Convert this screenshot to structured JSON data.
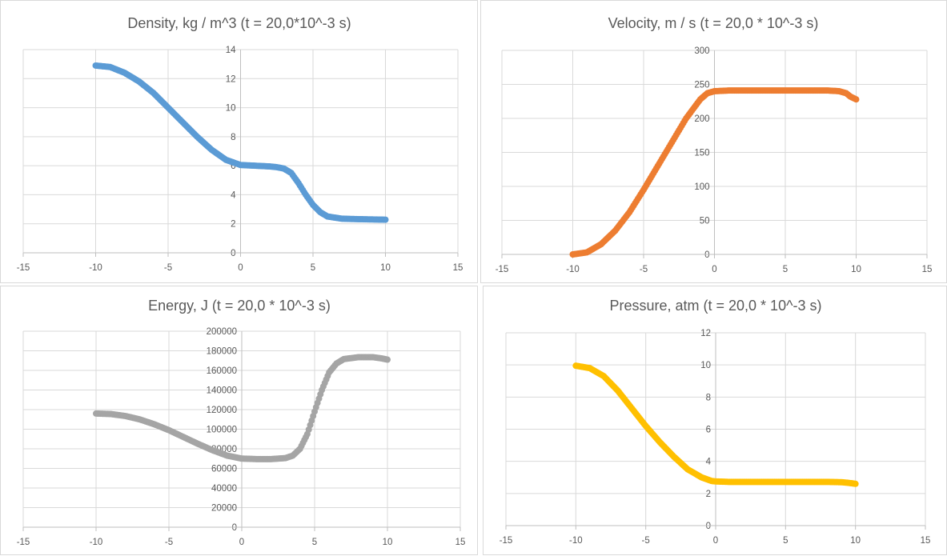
{
  "chart_data": [
    {
      "type": "scatter",
      "title": "Density, kg / m^3 (t = 20,0*10^-3 s)",
      "xlim": [
        -15,
        15
      ],
      "ylim": [
        0,
        14
      ],
      "xticks": [
        -15,
        -10,
        -5,
        0,
        5,
        10,
        15
      ],
      "yticks": [
        0,
        2,
        4,
        6,
        8,
        10,
        12,
        14
      ],
      "color": "#5b9bd5",
      "key_points": [
        [
          -10,
          12.9
        ],
        [
          -9,
          12.8
        ],
        [
          -8,
          12.4
        ],
        [
          -7,
          11.8
        ],
        [
          -6,
          11
        ],
        [
          -5,
          10
        ],
        [
          -4,
          9
        ],
        [
          -3,
          8
        ],
        [
          -2,
          7.1
        ],
        [
          -1,
          6.4
        ],
        [
          0,
          6.05
        ],
        [
          1,
          6.0
        ],
        [
          2,
          5.95
        ],
        [
          2.5,
          5.9
        ],
        [
          3,
          5.8
        ],
        [
          3.5,
          5.5
        ],
        [
          4,
          4.8
        ],
        [
          4.5,
          4.0
        ],
        [
          5,
          3.3
        ],
        [
          5.5,
          2.8
        ],
        [
          6,
          2.5
        ],
        [
          7,
          2.35
        ],
        [
          8,
          2.32
        ],
        [
          9,
          2.3
        ],
        [
          10,
          2.28
        ]
      ]
    },
    {
      "type": "scatter",
      "title": "Velocity, m / s (t = 20,0 * 10^-3 s)",
      "xlim": [
        -15,
        15
      ],
      "ylim": [
        0,
        300
      ],
      "xticks": [
        -15,
        -10,
        -5,
        0,
        5,
        10,
        15
      ],
      "yticks": [
        0,
        50,
        100,
        150,
        200,
        250,
        300
      ],
      "color": "#ed7d31",
      "key_points": [
        [
          -10,
          0
        ],
        [
          -9,
          3
        ],
        [
          -8,
          15
        ],
        [
          -7,
          35
        ],
        [
          -6,
          62
        ],
        [
          -5,
          95
        ],
        [
          -4,
          130
        ],
        [
          -3,
          165
        ],
        [
          -2,
          200
        ],
        [
          -1,
          228
        ],
        [
          -0.5,
          237
        ],
        [
          0,
          240
        ],
        [
          1,
          241
        ],
        [
          5,
          241
        ],
        [
          8,
          241
        ],
        [
          8.8,
          240
        ],
        [
          9.3,
          237
        ],
        [
          9.6,
          232
        ],
        [
          10,
          228
        ]
      ]
    },
    {
      "type": "scatter",
      "title": "Energy, J (t = 20,0 * 10^-3 s)",
      "xlim": [
        -15,
        15
      ],
      "ylim": [
        0,
        200000
      ],
      "xticks": [
        -15,
        -10,
        -5,
        0,
        5,
        10,
        15
      ],
      "yticks": [
        0,
        20000,
        40000,
        60000,
        80000,
        100000,
        120000,
        140000,
        160000,
        180000,
        200000
      ],
      "color": "#a5a5a5",
      "key_points": [
        [
          -10,
          116000
        ],
        [
          -9,
          115500
        ],
        [
          -8,
          113500
        ],
        [
          -7,
          110000
        ],
        [
          -6,
          105000
        ],
        [
          -5,
          99000
        ],
        [
          -4,
          92000
        ],
        [
          -3,
          85000
        ],
        [
          -2,
          78500
        ],
        [
          -1,
          73000
        ],
        [
          0,
          70000
        ],
        [
          1,
          69500
        ],
        [
          2,
          69500
        ],
        [
          3,
          70500
        ],
        [
          3.5,
          73000
        ],
        [
          4,
          80000
        ],
        [
          4.5,
          95000
        ],
        [
          5,
          118000
        ],
        [
          5.5,
          140000
        ],
        [
          6,
          158000
        ],
        [
          6.5,
          167000
        ],
        [
          7,
          171500
        ],
        [
          8,
          173500
        ],
        [
          9,
          173500
        ],
        [
          9.5,
          172500
        ],
        [
          10,
          171000
        ]
      ]
    },
    {
      "type": "scatter",
      "title": "Pressure, atm (t = 20,0 * 10^-3 s)",
      "xlim": [
        -15,
        15
      ],
      "ylim": [
        0,
        12
      ],
      "xticks": [
        -15,
        -10,
        -5,
        0,
        5,
        10,
        15
      ],
      "yticks": [
        0,
        2,
        4,
        6,
        8,
        10,
        12
      ],
      "color": "#ffc000",
      "key_points": [
        [
          -10,
          9.95
        ],
        [
          -9,
          9.8
        ],
        [
          -8,
          9.3
        ],
        [
          -7,
          8.4
        ],
        [
          -6,
          7.3
        ],
        [
          -5,
          6.2
        ],
        [
          -4,
          5.2
        ],
        [
          -3,
          4.3
        ],
        [
          -2,
          3.5
        ],
        [
          -1,
          3.0
        ],
        [
          -0.3,
          2.78
        ],
        [
          0,
          2.75
        ],
        [
          1,
          2.72
        ],
        [
          5,
          2.72
        ],
        [
          8,
          2.72
        ],
        [
          9,
          2.7
        ],
        [
          9.5,
          2.66
        ],
        [
          10,
          2.6
        ]
      ]
    }
  ]
}
